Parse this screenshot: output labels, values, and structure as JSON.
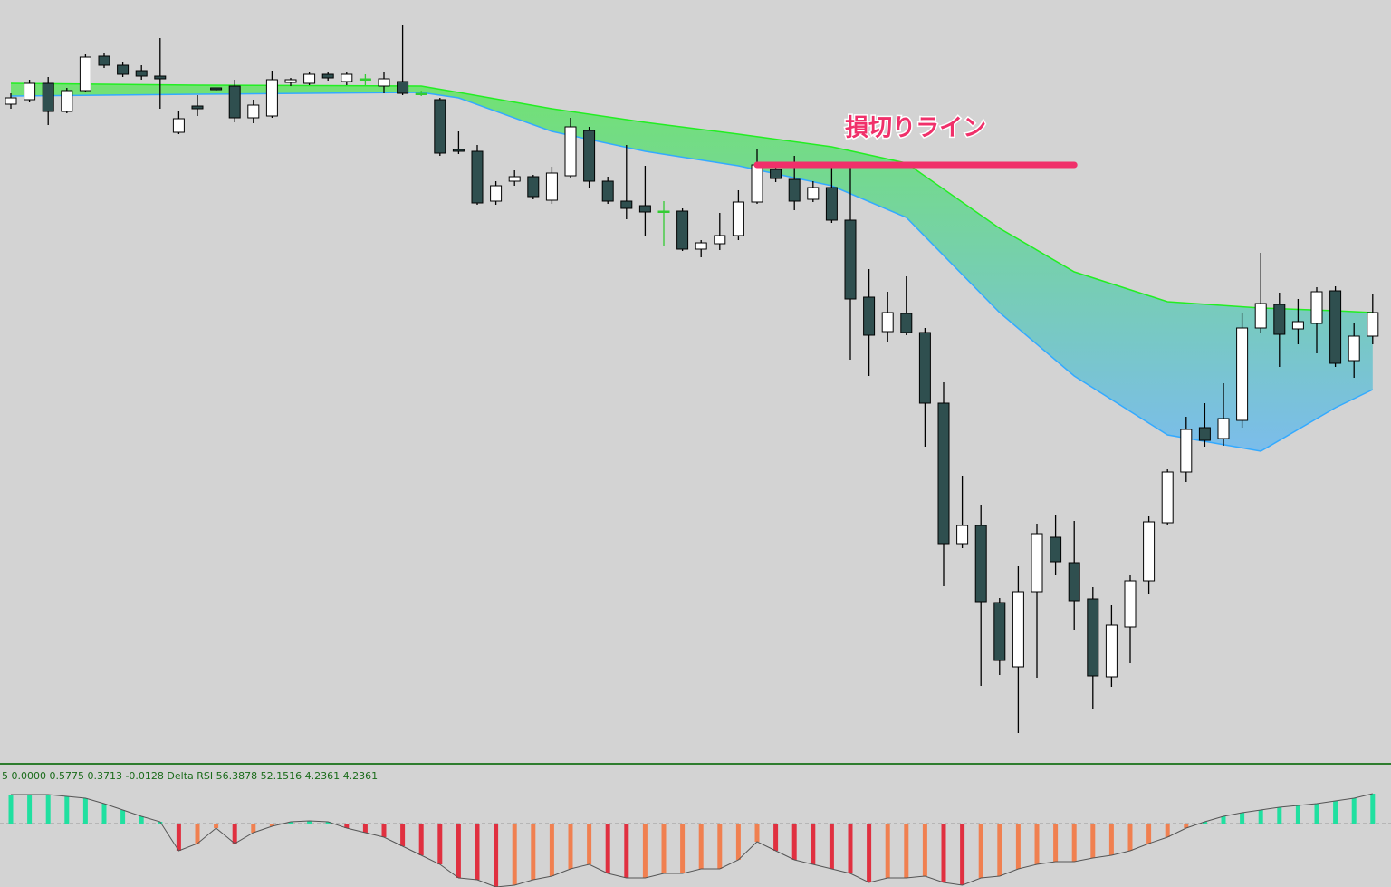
{
  "chart_data": [
    {
      "type": "candlestick",
      "open": [
        725,
        730,
        748,
        717,
        740,
        778,
        768,
        762,
        756,
        694,
        723,
        743,
        745,
        710,
        712,
        749,
        748,
        758,
        750,
        753,
        745,
        750,
        737,
        730,
        675,
        673,
        618,
        640,
        645,
        619,
        646,
        696,
        640,
        618,
        613,
        607,
        607,
        565,
        571,
        580,
        617,
        653,
        642,
        620,
        633,
        597,
        512,
        474,
        494,
        473,
        395,
        240,
        260,
        175,
        104,
        187,
        247,
        219,
        179,
        93,
        148,
        199,
        263,
        319,
        368,
        356,
        376,
        478,
        504,
        477,
        483,
        519,
        442,
        469
      ],
      "high": [
        737,
        752,
        755,
        743,
        780,
        782,
        772,
        768,
        798,
        718,
        735,
        743,
        752,
        730,
        762,
        754,
        760,
        761,
        760,
        758,
        760,
        812,
        740,
        732,
        695,
        680,
        640,
        652,
        647,
        656,
        710,
        700,
        645,
        680,
        657,
        618,
        610,
        575,
        605,
        630,
        675,
        660,
        668,
        640,
        655,
        655,
        543,
        518,
        535,
        478,
        418,
        315,
        283,
        180,
        215,
        262,
        272,
        265,
        192,
        172,
        205,
        270,
        322,
        380,
        395,
        417,
        495,
        561,
        517,
        510,
        523,
        524,
        483,
        516
      ],
      "low": [
        720,
        727,
        702,
        715,
        738,
        765,
        755,
        752,
        720,
        692,
        712,
        740,
        705,
        704,
        710,
        745,
        746,
        751,
        746,
        746,
        737,
        735,
        734,
        668,
        670,
        614,
        614,
        635,
        620,
        615,
        644,
        632,
        615,
        598,
        580,
        568,
        563,
        556,
        564,
        575,
        615,
        639,
        608,
        617,
        594,
        443,
        425,
        462,
        470,
        347,
        193,
        235,
        83,
        95,
        31,
        92,
        205,
        145,
        58,
        82,
        108,
        184,
        260,
        308,
        347,
        348,
        368,
        473,
        435,
        460,
        450,
        435,
        423,
        460
      ],
      "close": [
        732,
        748,
        717,
        740,
        777,
        768,
        758,
        756,
        753,
        709,
        720,
        741,
        710,
        724,
        752,
        752,
        758,
        754,
        758,
        753,
        753,
        737,
        737,
        671,
        673,
        616,
        635,
        645,
        623,
        649,
        700,
        640,
        618,
        610,
        606,
        607,
        565,
        572,
        580,
        617,
        658,
        643,
        618,
        633,
        597,
        510,
        470,
        495,
        473,
        395,
        240,
        260,
        176,
        111,
        187,
        251,
        220,
        177,
        94,
        150,
        199,
        264,
        319,
        366,
        354,
        378,
        478,
        505,
        471,
        485,
        518,
        439,
        469,
        495
      ],
      "up_color": "#ffffff",
      "down_color": "#2f4f4f",
      "doji_color": "#33cc33",
      "ylim": [
        0,
        840
      ],
      "ribbon": {
        "x": [
          0,
          10,
          22,
          24,
          29,
          34,
          39,
          44,
          48,
          53,
          57,
          62,
          67,
          71,
          73
        ],
        "upper": [
          748,
          746,
          745,
          738,
          720,
          705,
          692,
          678,
          660,
          588,
          540,
          507,
          500,
          497,
          495
        ],
        "lower": [
          734,
          736,
          738,
          732,
          695,
          673,
          657,
          635,
          600,
          495,
          425,
          360,
          342,
          390,
          410
        ],
        "colors": [
          "#22ee22",
          "#33aaff"
        ]
      },
      "annotation": {
        "text": "損切りライン",
        "value": 658,
        "from": 40,
        "to": 57,
        "color": "#f0306a"
      }
    },
    {
      "type": "histogram_indicator",
      "label": "5 0.0000 0.5775 0.3713 -0.0128  Delta RSI 56.3878 52.1516 4.2361 4.2361",
      "values": [
        32,
        32,
        32,
        30,
        28,
        22,
        15,
        8,
        2,
        -30,
        -22,
        -5,
        -22,
        -10,
        -3,
        2,
        3,
        2,
        -5,
        -10,
        -15,
        -25,
        -35,
        -45,
        -60,
        -62,
        -70,
        -68,
        -62,
        -58,
        -50,
        -45,
        -55,
        -60,
        -60,
        -55,
        -55,
        -50,
        -50,
        -40,
        -20,
        -30,
        -40,
        -45,
        -50,
        -55,
        -65,
        -60,
        -60,
        -58,
        -65,
        -68,
        -60,
        -58,
        -50,
        -45,
        -42,
        -42,
        -38,
        -35,
        -30,
        -22,
        -15,
        -5,
        2,
        8,
        12,
        15,
        18,
        20,
        22,
        25,
        28,
        33
      ],
      "ylim": [
        -70,
        64
      ],
      "colors": {
        "up": "#20e0a0",
        "down_falling": "#e03040",
        "down_rising": "#f08050"
      }
    }
  ]
}
